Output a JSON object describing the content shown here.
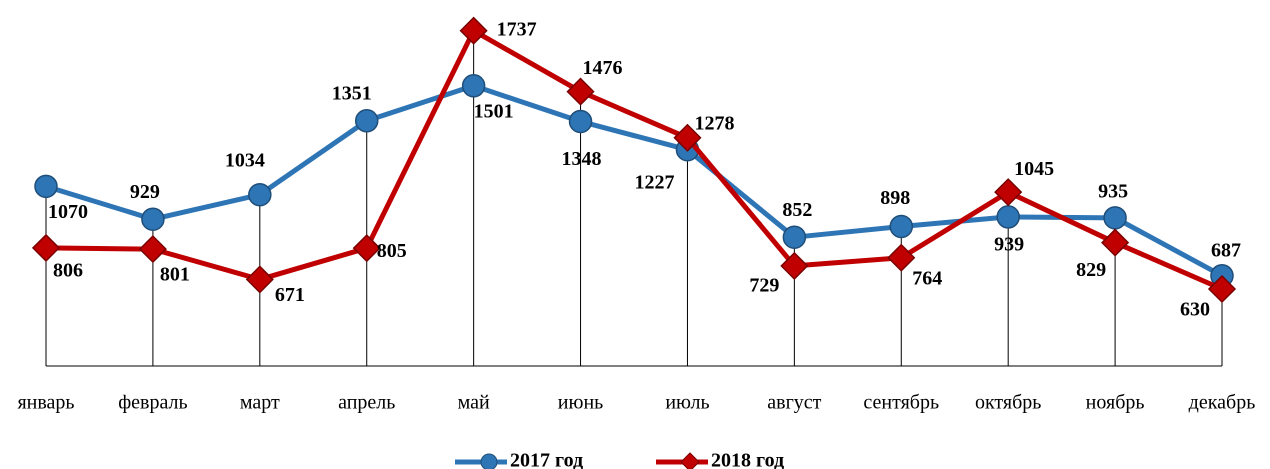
{
  "chart_data": {
    "type": "line",
    "categories": [
      "январь",
      "февраль",
      "март",
      "апрель",
      "май",
      "июнь",
      "июль",
      "август",
      "сентябрь",
      "октябрь",
      "ноябрь",
      "декабрь"
    ],
    "series": [
      {
        "name": "2017 год",
        "color": "#2e75b6",
        "marker": "circle",
        "values": [
          1070,
          929,
          1034,
          1351,
          1501,
          1348,
          1227,
          852,
          898,
          939,
          935,
          687
        ]
      },
      {
        "name": "2018 год",
        "color": "#c00000",
        "marker": "diamond",
        "values": [
          806,
          801,
          671,
          805,
          1737,
          1476,
          1278,
          729,
          764,
          1045,
          829,
          630
        ]
      }
    ],
    "ylim": [
      300,
      1800
    ],
    "drop_lines": true,
    "legend": "bottom"
  }
}
